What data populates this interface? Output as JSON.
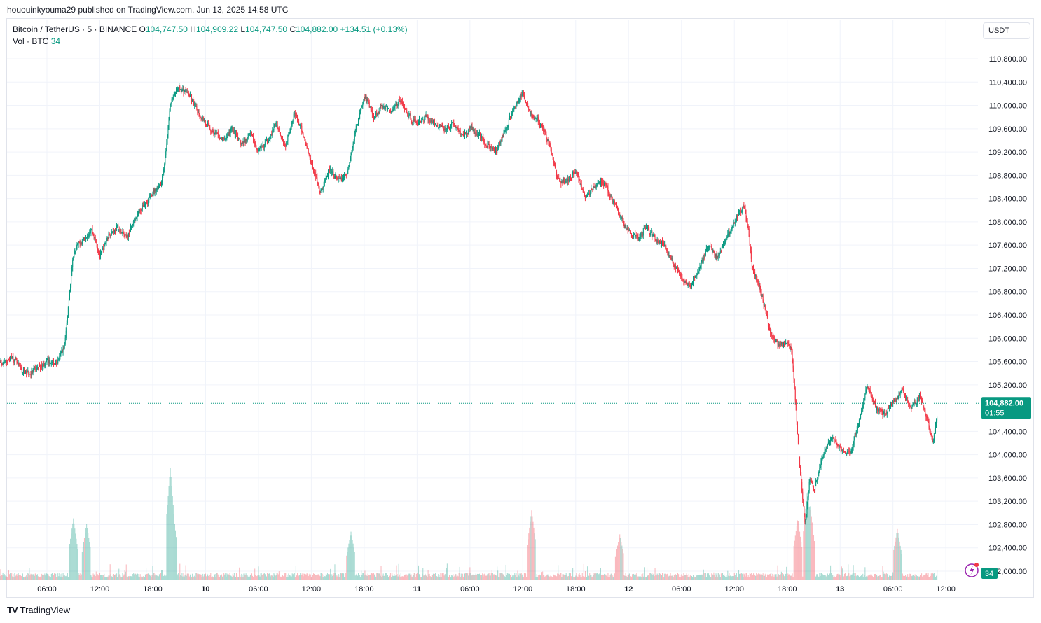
{
  "header": {
    "published": "hououinkyouma29 published on TradingView.com, Jun 13, 2025 14:58 UTC"
  },
  "legend": {
    "symbol": "Bitcoin / TetherUS · 5 · BINANCE",
    "o_label": "O",
    "o_value": "104,747.50",
    "h_label": "H",
    "h_value": "104,909.22",
    "l_label": "L",
    "l_value": "104,747.50",
    "c_label": "C",
    "c_value": "104,882.00",
    "change": "+134.51 (+0.13%)",
    "vol_label": "Vol · BTC",
    "vol_value": "34"
  },
  "currency_button": "USDT",
  "price_badge": {
    "price": "104,882.00",
    "countdown": "01:55"
  },
  "volume_badge": "34",
  "footer": {
    "logo_mark": "TV",
    "logo_text": "TradingView"
  },
  "colors": {
    "up": "#089981",
    "down": "#f23645",
    "grid": "#f0f3fa",
    "axis_text": "#131722"
  },
  "chart_data": {
    "type": "candlestick",
    "symbol": "BTCUSDT",
    "interval": "5",
    "ylim": [
      101800,
      111000
    ],
    "ytick_labels": [
      "110,800.00",
      "110,400.00",
      "110,000.00",
      "109,600.00",
      "109,200.00",
      "108,800.00",
      "108,400.00",
      "108,000.00",
      "107,600.00",
      "107,200.00",
      "106,800.00",
      "106,400.00",
      "106,000.00",
      "105,600.00",
      "105,200.00",
      "104,400.00",
      "104,000.00",
      "103,600.00",
      "103,200.00",
      "102,800.00",
      "102,400.00",
      "102,000.00"
    ],
    "ytick_values": [
      110800,
      110400,
      110000,
      109600,
      109200,
      108800,
      108400,
      108000,
      107600,
      107200,
      106800,
      106400,
      106000,
      105600,
      105200,
      104400,
      104000,
      103600,
      103200,
      102800,
      102400,
      102000
    ],
    "xtick_labels": [
      "06:00",
      "12:00",
      "18:00",
      "10",
      "06:00",
      "12:00",
      "18:00",
      "11",
      "06:00",
      "12:00",
      "18:00",
      "12",
      "06:00",
      "12:00",
      "18:00",
      "13",
      "06:00",
      "12:00"
    ],
    "xtick_hours": [
      6,
      12,
      18,
      24,
      30,
      36,
      42,
      48,
      54,
      60,
      66,
      72,
      78,
      84,
      90,
      96,
      102,
      108
    ],
    "xtick_bold": [
      false,
      false,
      false,
      true,
      false,
      false,
      false,
      true,
      false,
      false,
      false,
      true,
      false,
      false,
      false,
      true,
      false,
      false
    ],
    "last_price": 104882,
    "price_path": [
      [
        0,
        105650
      ],
      [
        1,
        105550
      ],
      [
        2,
        105700
      ],
      [
        3,
        105450
      ],
      [
        4,
        105380
      ],
      [
        5,
        105500
      ],
      [
        6,
        105600
      ],
      [
        7,
        105550
      ],
      [
        8,
        105900
      ],
      [
        8.5,
        106800
      ],
      [
        9,
        107500
      ],
      [
        10,
        107700
      ],
      [
        11,
        107900
      ],
      [
        12,
        107400
      ],
      [
        13,
        107800
      ],
      [
        14,
        107900
      ],
      [
        15,
        107700
      ],
      [
        16,
        108100
      ],
      [
        17,
        108300
      ],
      [
        18,
        108500
      ],
      [
        19,
        108700
      ],
      [
        19.5,
        109300
      ],
      [
        20,
        110100
      ],
      [
        21,
        110300
      ],
      [
        22,
        110200
      ],
      [
        23,
        109900
      ],
      [
        24,
        109700
      ],
      [
        25,
        109500
      ],
      [
        26,
        109400
      ],
      [
        27,
        109600
      ],
      [
        28,
        109300
      ],
      [
        29,
        109500
      ],
      [
        30,
        109200
      ],
      [
        31,
        109400
      ],
      [
        32,
        109700
      ],
      [
        33,
        109300
      ],
      [
        34,
        109900
      ],
      [
        35,
        109500
      ],
      [
        36,
        109000
      ],
      [
        37,
        108500
      ],
      [
        38,
        108900
      ],
      [
        39,
        108700
      ],
      [
        40,
        108800
      ],
      [
        41,
        109600
      ],
      [
        42,
        110200
      ],
      [
        43,
        109800
      ],
      [
        44,
        110000
      ],
      [
        45,
        109900
      ],
      [
        46,
        110100
      ],
      [
        47,
        109800
      ],
      [
        48,
        109700
      ],
      [
        49,
        109800
      ],
      [
        50,
        109700
      ],
      [
        51,
        109600
      ],
      [
        52,
        109700
      ],
      [
        53,
        109500
      ],
      [
        54,
        109600
      ],
      [
        55,
        109500
      ],
      [
        56,
        109300
      ],
      [
        57,
        109200
      ],
      [
        58,
        109600
      ],
      [
        59,
        110000
      ],
      [
        60,
        110200
      ],
      [
        61,
        109800
      ],
      [
        62,
        109700
      ],
      [
        63,
        109300
      ],
      [
        64,
        108700
      ],
      [
        65,
        108700
      ],
      [
        66,
        108900
      ],
      [
        67,
        108400
      ],
      [
        68,
        108600
      ],
      [
        69,
        108700
      ],
      [
        70,
        108400
      ],
      [
        71,
        108100
      ],
      [
        72,
        107800
      ],
      [
        73,
        107700
      ],
      [
        74,
        107900
      ],
      [
        75,
        107700
      ],
      [
        76,
        107600
      ],
      [
        77,
        107300
      ],
      [
        78,
        107000
      ],
      [
        79,
        106900
      ],
      [
        80,
        107200
      ],
      [
        81,
        107600
      ],
      [
        82,
        107400
      ],
      [
        83,
        107700
      ],
      [
        84,
        108000
      ],
      [
        85,
        108300
      ],
      [
        85.5,
        107900
      ],
      [
        86,
        107200
      ],
      [
        87,
        106800
      ],
      [
        88,
        106100
      ],
      [
        89,
        105900
      ],
      [
        90,
        105900
      ],
      [
        90.5,
        105800
      ],
      [
        91,
        104600
      ],
      [
        91.5,
        103500
      ],
      [
        92,
        102800
      ],
      [
        92.5,
        103600
      ],
      [
        93,
        103400
      ],
      [
        94,
        104000
      ],
      [
        95,
        104300
      ],
      [
        96,
        104100
      ],
      [
        97,
        104000
      ],
      [
        98,
        104500
      ],
      [
        99,
        105200
      ],
      [
        100,
        104800
      ],
      [
        101,
        104700
      ],
      [
        102,
        104900
      ],
      [
        103,
        105100
      ],
      [
        104,
        104800
      ],
      [
        105,
        105000
      ],
      [
        106,
        104500
      ],
      [
        106.5,
        104200
      ],
      [
        107,
        104700
      ]
    ],
    "volume_note": "Per-bar volume in BTC; bars colored by candle direction",
    "volume_spikes": [
      [
        20,
        420
      ],
      [
        20.2,
        300
      ],
      [
        9,
        230
      ],
      [
        10.5,
        210
      ],
      [
        40.5,
        180
      ],
      [
        61,
        260
      ],
      [
        71,
        170
      ],
      [
        91.2,
        230
      ],
      [
        92.3,
        340
      ],
      [
        92.6,
        280
      ],
      [
        102.5,
        190
      ]
    ]
  }
}
